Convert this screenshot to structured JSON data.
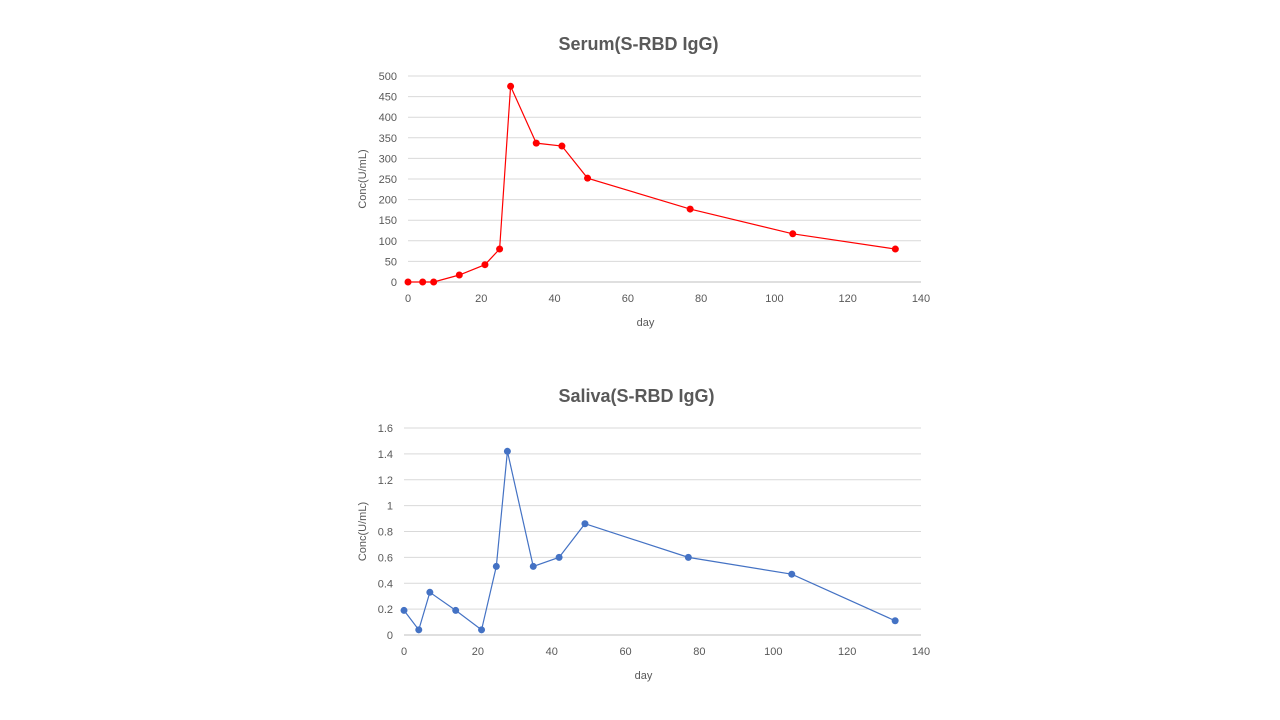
{
  "chart_data": [
    {
      "type": "line",
      "title": "Serum(S-RBD IgG)",
      "xlabel": "day",
      "ylabel": "Conc(U/mL)",
      "xlim": [
        0,
        140
      ],
      "ylim": [
        0,
        500
      ],
      "xticks": [
        0,
        20,
        40,
        60,
        80,
        100,
        120,
        140
      ],
      "yticks": [
        0,
        50,
        100,
        150,
        200,
        250,
        300,
        350,
        400,
        450,
        500
      ],
      "grid": true,
      "color": "#FF0000",
      "x": [
        0,
        4,
        7,
        14,
        21,
        25,
        28,
        35,
        42,
        49,
        77,
        105,
        133
      ],
      "y": [
        0,
        0,
        0,
        17,
        42,
        80,
        475,
        337,
        330,
        252,
        177,
        117,
        80
      ]
    },
    {
      "type": "line",
      "title": "Saliva(S-RBD IgG)",
      "xlabel": "day",
      "ylabel": "Conc(U/mL)",
      "xlim": [
        0,
        140
      ],
      "ylim": [
        0,
        1.6
      ],
      "xticks": [
        0,
        20,
        40,
        60,
        80,
        100,
        120,
        140
      ],
      "yticks": [
        0,
        0.2,
        0.4,
        0.6,
        0.8,
        1,
        1.2,
        1.4,
        1.6
      ],
      "grid": true,
      "color": "#4472C4",
      "x": [
        0,
        4,
        7,
        14,
        21,
        25,
        28,
        35,
        42,
        49,
        77,
        105,
        133
      ],
      "y": [
        0.19,
        0.04,
        0.33,
        0.19,
        0.04,
        0.53,
        1.42,
        0.53,
        0.6,
        0.86,
        0.6,
        0.47,
        0.11
      ]
    }
  ]
}
